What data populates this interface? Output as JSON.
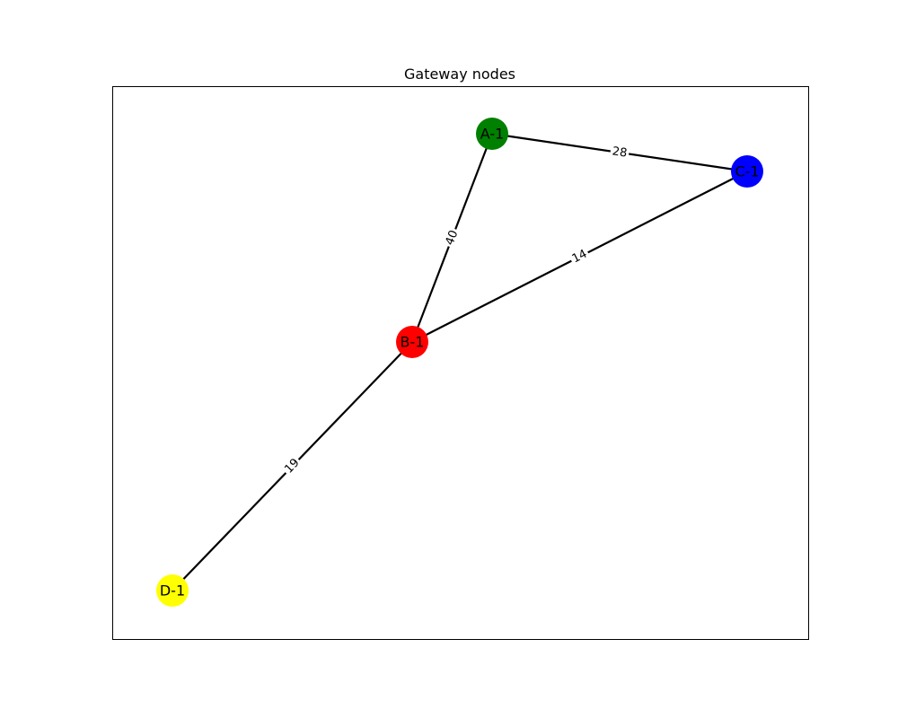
{
  "title": "Gateway nodes",
  "nodes": [
    {
      "id": "A-1",
      "label": "A-1",
      "color": "#008000"
    },
    {
      "id": "B-1",
      "label": "B-1",
      "color": "#ff0000"
    },
    {
      "id": "C-1",
      "label": "C-1",
      "color": "#0000ff"
    },
    {
      "id": "D-1",
      "label": "D-1",
      "color": "#ffff00"
    }
  ],
  "edges": [
    {
      "from": "A-1",
      "to": "C-1",
      "weight": "28"
    },
    {
      "from": "A-1",
      "to": "B-1",
      "weight": "40"
    },
    {
      "from": "B-1",
      "to": "C-1",
      "weight": "14"
    },
    {
      "from": "B-1",
      "to": "D-1",
      "weight": "19"
    }
  ],
  "colors": {
    "edge": "#000000",
    "frame": "#000000",
    "background": "#ffffff"
  }
}
